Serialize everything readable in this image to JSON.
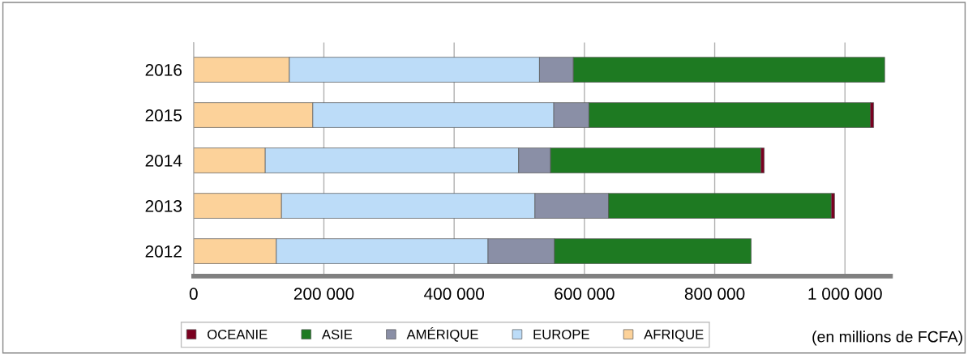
{
  "chart_data": {
    "type": "bar",
    "orientation": "horizontal",
    "stacked": true,
    "categories": [
      "2016",
      "2015",
      "2014",
      "2013",
      "2012"
    ],
    "series": [
      {
        "name": "AFRIQUE",
        "color": "#fcd29a",
        "values": [
          147000,
          183000,
          110000,
          135000,
          127000
        ]
      },
      {
        "name": "EUROPE",
        "color": "#bcdcf8",
        "values": [
          384000,
          370000,
          389000,
          389000,
          325000
        ]
      },
      {
        "name": "AMÉRIQUE",
        "color": "#8a8fa6",
        "values": [
          52000,
          54000,
          49000,
          113000,
          102000
        ]
      },
      {
        "name": "ASIE",
        "color": "#1e7a22",
        "values": [
          478000,
          432000,
          323000,
          342000,
          302000
        ]
      },
      {
        "name": "OCEANIE",
        "color": "#7a0020",
        "values": [
          null,
          5000,
          5000,
          5000,
          null
        ]
      }
    ],
    "xlim": [
      0,
      1070000
    ],
    "xticks": [
      {
        "value": 0,
        "label": "0"
      },
      {
        "value": 200000,
        "label": "200 000"
      },
      {
        "value": 400000,
        "label": "400 000"
      },
      {
        "value": 600000,
        "label": "600 000"
      },
      {
        "value": 800000,
        "label": "800 000"
      },
      {
        "value": 1000000,
        "label": "1 000 000"
      }
    ],
    "xlabel": "(en millions de FCFA)",
    "grid": "x",
    "legend": "bottom"
  }
}
